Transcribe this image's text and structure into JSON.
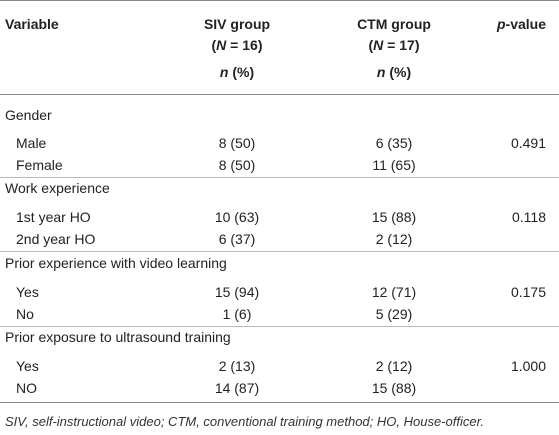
{
  "header": {
    "variable": "Variable",
    "siv_line1": "SIV group",
    "siv_line2_open": "(",
    "siv_line2_n": "N",
    "siv_line2_rest": " = 16)",
    "ctm_line1": "CTM group",
    "ctm_line2_open": "(",
    "ctm_line2_n": "N",
    "ctm_line2_rest": " = 17)",
    "n_label": "n",
    "pct_label": " (%)",
    "p_italic": "p",
    "p_rest": "-value"
  },
  "sections": [
    {
      "title": "Gender",
      "rows": [
        {
          "label": "Male",
          "siv": "8 (50)",
          "ctm": "6 (35)",
          "p": "0.491"
        },
        {
          "label": "Female",
          "siv": "8 (50)",
          "ctm": "11 (65)",
          "p": ""
        }
      ]
    },
    {
      "title": "Work experience",
      "rows": [
        {
          "label": "1st year HO",
          "siv": "10 (63)",
          "ctm": "15 (88)",
          "p": "0.118"
        },
        {
          "label": "2nd year HO",
          "siv": "6 (37)",
          "ctm": "2 (12)",
          "p": ""
        }
      ]
    },
    {
      "title": "Prior experience with video learning",
      "rows": [
        {
          "label": "Yes",
          "siv": "15 (94)",
          "ctm": "12 (71)",
          "p": "0.175"
        },
        {
          "label": "No",
          "siv": "1 (6)",
          "ctm": "5 (29)",
          "p": ""
        }
      ]
    },
    {
      "title": "Prior exposure to ultrasound training",
      "rows": [
        {
          "label": "Yes",
          "siv": "2 (13)",
          "ctm": "2 (12)",
          "p": "1.000"
        },
        {
          "label": "NO",
          "siv": "14 (87)",
          "ctm": "15 (88)",
          "p": ""
        }
      ]
    }
  ],
  "footnote": "SIV, self-instructional video; CTM, conventional training method; HO, House-officer."
}
